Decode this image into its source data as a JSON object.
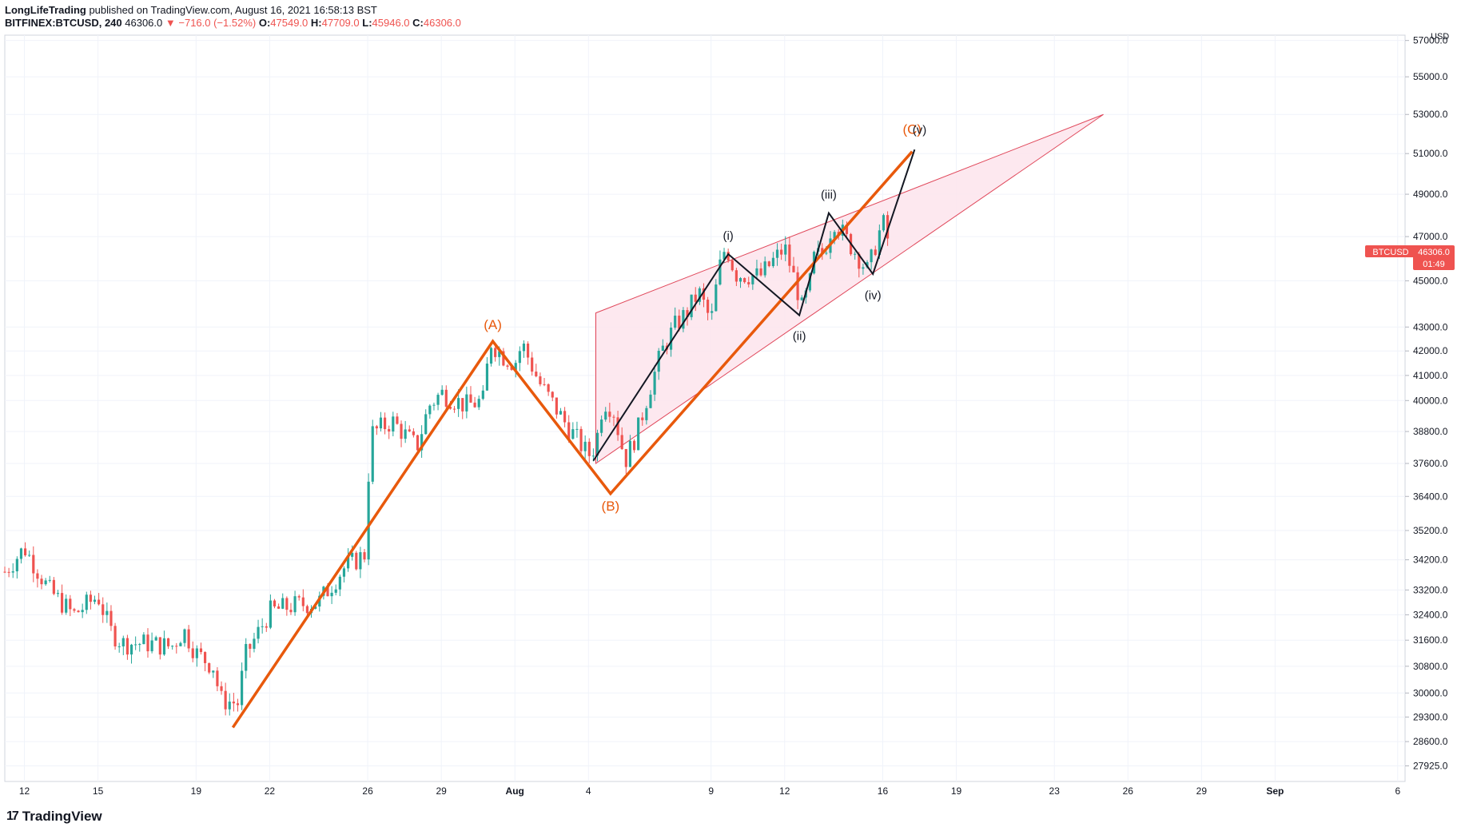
{
  "header": {
    "author": "LongLifeTrading",
    "published_text": "published on TradingView.com, August 16, 2021 16:58:13 BST",
    "symbol": "BITFINEX:BTCUSD, 240",
    "last": "46306.0",
    "change": "▼ −716.0 (−1.52%)",
    "o_label": "O:",
    "o_value": "47549.0",
    "h_label": "H:",
    "h_value": "47709.0",
    "l_label": "L:",
    "l_value": "45946.0",
    "c_label": "C:",
    "c_value": "46306.0"
  },
  "logo": {
    "text": "TradingView",
    "mark": "17"
  },
  "colors": {
    "up": "#26a69a",
    "down": "#ef5350",
    "orange": "#e8590c",
    "wedge_fill": "#fde4ec",
    "wedge_line": "#e0475a",
    "black": "#131722",
    "grid": "#f0f3fa"
  },
  "chart_data": {
    "type": "candlestick",
    "title": "BITFINEX:BTCUSD, 240",
    "currency": "USD",
    "x_min": 11.2,
    "x_max": 68.3,
    "ylim": [
      27500,
      57300
    ],
    "y_ticks": [
      "57000.0",
      "55000.0",
      "53000.0",
      "51000.0",
      "49000.0",
      "47000.0",
      "45000.0",
      "43000.0",
      "42000.0",
      "41000.0",
      "40000.0",
      "38800.0",
      "37600.0",
      "36400.0",
      "35200.0",
      "34200.0",
      "33200.0",
      "32400.0",
      "31600.0",
      "30800.0",
      "30000.0",
      "29300.0",
      "28600.0",
      "27925.0"
    ],
    "y_tick_values": [
      57000,
      55000,
      53000,
      51000,
      49000,
      47000,
      45000,
      43000,
      42000,
      41000,
      40000,
      38800,
      37600,
      36400,
      35200,
      34200,
      33200,
      32400,
      31600,
      30800,
      30000,
      29300,
      28600,
      27925
    ],
    "x_ticks": [
      {
        "d": 12,
        "label": "12"
      },
      {
        "d": 15,
        "label": "15"
      },
      {
        "d": 19,
        "label": "19"
      },
      {
        "d": 22,
        "label": "22"
      },
      {
        "d": 26,
        "label": "26"
      },
      {
        "d": 29,
        "label": "29"
      },
      {
        "d": 32,
        "label": "Aug"
      },
      {
        "d": 35,
        "label": "4"
      },
      {
        "d": 40,
        "label": "9"
      },
      {
        "d": 43,
        "label": "12"
      },
      {
        "d": 47,
        "label": "16"
      },
      {
        "d": 50,
        "label": "19"
      },
      {
        "d": 54,
        "label": "23"
      },
      {
        "d": 57,
        "label": "26"
      },
      {
        "d": 60,
        "label": "29"
      },
      {
        "d": 63,
        "label": "Sep"
      },
      {
        "d": 68,
        "label": "6"
      }
    ],
    "price_label": {
      "symbol": "BTCUSD",
      "price": "46306.0",
      "countdown": "01:49",
      "value": 46306
    },
    "price_path": [
      [
        11.2,
        33800
      ],
      [
        12.0,
        34600
      ],
      [
        12.5,
        33900
      ],
      [
        13.0,
        33200
      ],
      [
        14.0,
        32400
      ],
      [
        15.0,
        33000
      ],
      [
        15.5,
        31900
      ],
      [
        16.0,
        31500
      ],
      [
        17.0,
        31500
      ],
      [
        18.0,
        31400
      ],
      [
        18.5,
        31900
      ],
      [
        19.0,
        31200
      ],
      [
        19.7,
        30800
      ],
      [
        20.0,
        29800
      ],
      [
        20.7,
        29700
      ],
      [
        21.0,
        31100
      ],
      [
        22.0,
        32500
      ],
      [
        23.0,
        32700
      ],
      [
        24.0,
        32800
      ],
      [
        25.0,
        33900
      ],
      [
        25.9,
        34400
      ],
      [
        26.1,
        38700
      ],
      [
        27.0,
        39200
      ],
      [
        28.0,
        38200
      ],
      [
        28.5,
        39800
      ],
      [
        29.0,
        40300
      ],
      [
        30.0,
        39800
      ],
      [
        30.7,
        40000
      ],
      [
        31.0,
        42400
      ],
      [
        31.5,
        41800
      ],
      [
        32.0,
        41500
      ],
      [
        32.3,
        42300
      ],
      [
        33.0,
        40700
      ],
      [
        34.0,
        39200
      ],
      [
        35.0,
        37900
      ],
      [
        35.3,
        38300
      ],
      [
        35.6,
        40000
      ],
      [
        36.0,
        39700
      ],
      [
        36.5,
        37700
      ],
      [
        37.0,
        38800
      ],
      [
        37.5,
        40500
      ],
      [
        38.0,
        42000
      ],
      [
        38.5,
        43000
      ],
      [
        39.0,
        43600
      ],
      [
        39.5,
        44500
      ],
      [
        40.0,
        43200
      ],
      [
        40.3,
        45400
      ],
      [
        40.6,
        46600
      ],
      [
        41.0,
        45300
      ],
      [
        42.0,
        45200
      ],
      [
        43.0,
        46500
      ],
      [
        43.5,
        44700
      ],
      [
        43.7,
        43800
      ],
      [
        44.0,
        44700
      ],
      [
        44.2,
        46000
      ],
      [
        44.6,
        46300
      ],
      [
        45.0,
        47800
      ],
      [
        45.5,
        46900
      ],
      [
        46.0,
        46100
      ],
      [
        46.4,
        45400
      ],
      [
        46.7,
        46600
      ],
      [
        47.0,
        47700
      ],
      [
        47.2,
        46900
      ],
      [
        47.33,
        46306
      ]
    ],
    "series": [
      {
        "name": "Primary wave (ABC)",
        "color": "orange",
        "points": [
          [
            20.5,
            29000
          ],
          [
            31.1,
            42400
          ],
          [
            35.9,
            36500
          ],
          [
            48.2,
            51100
          ]
        ]
      },
      {
        "name": "Sub-wave (i)-(v)",
        "color": "black",
        "points": [
          [
            35.2,
            37700
          ],
          [
            40.7,
            46200
          ],
          [
            43.6,
            43500
          ],
          [
            44.8,
            48100
          ],
          [
            46.6,
            45300
          ],
          [
            48.3,
            51200
          ]
        ]
      },
      {
        "name": "Rising wedge",
        "upper": [
          [
            35.3,
            43600
          ],
          [
            56.0,
            53000
          ]
        ],
        "lower": [
          [
            35.3,
            37600
          ],
          [
            56.0,
            53000
          ]
        ]
      }
    ],
    "annotations": [
      {
        "text": "(A)",
        "d": 31.1,
        "v": 42900,
        "color": "orange"
      },
      {
        "text": "(B)",
        "d": 35.9,
        "v": 35900,
        "color": "orange"
      },
      {
        "text": "(C)",
        "d": 48.2,
        "v": 52000,
        "color": "orange"
      },
      {
        "text": "(i)",
        "d": 40.7,
        "v": 46850,
        "color": "black"
      },
      {
        "text": "(ii)",
        "d": 43.6,
        "v": 42450,
        "color": "black"
      },
      {
        "text": "(iii)",
        "d": 44.8,
        "v": 48800,
        "color": "black"
      },
      {
        "text": "(iv)",
        "d": 46.6,
        "v": 44200,
        "color": "black"
      },
      {
        "text": "(v)",
        "d": 48.5,
        "v": 52000,
        "color": "black"
      }
    ]
  }
}
